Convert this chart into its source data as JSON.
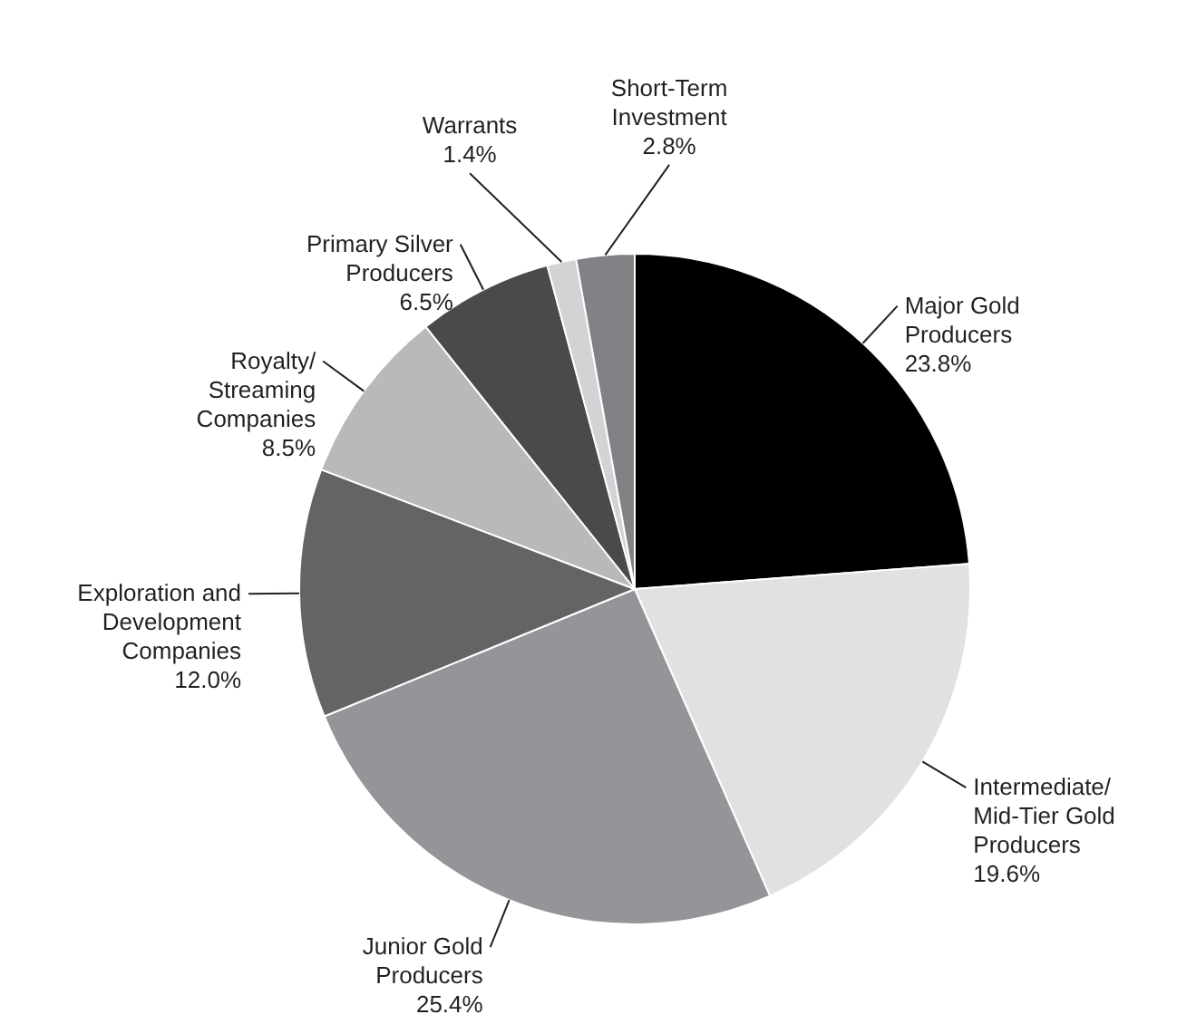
{
  "chart_data": {
    "type": "pie",
    "categories": [
      "Major Gold Producers",
      "Intermediate/Mid-Tier Gold Producers",
      "Junior Gold Producers",
      "Exploration and Development Companies",
      "Royalty/Streaming Companies",
      "Primary Silver Producers",
      "Warrants",
      "Short-Term Investment"
    ],
    "values": [
      23.8,
      19.6,
      25.4,
      12.0,
      8.5,
      6.5,
      1.4,
      2.8
    ],
    "value_labels": [
      "23.8%",
      "19.6%",
      "25.4%",
      "12.0%",
      "8.5%",
      "6.5%",
      "1.4%",
      "2.8%"
    ],
    "colors": [
      "#000000",
      "#e1e1e2",
      "#939598",
      "#636466",
      "#b7b9bb",
      "#4a4a4c",
      "#d1d3d4",
      "#808285"
    ]
  }
}
